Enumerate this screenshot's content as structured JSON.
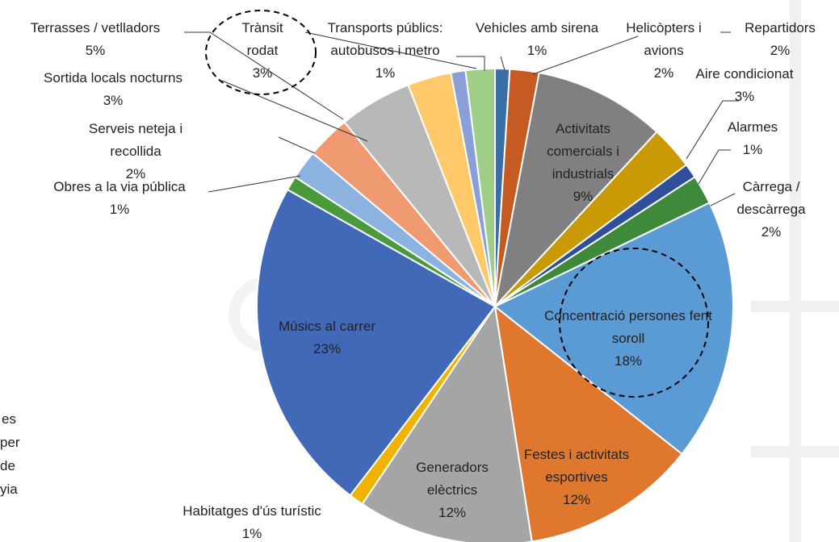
{
  "chart_data": {
    "type": "pie",
    "categories": [
      "Vehicles amb sirena",
      "Helicòpters i avions",
      "Activitats comercials i industrials",
      "Aire condicionat",
      "Alarmes",
      "Càrrega / descàrrega",
      "Concentració persones fent soroll",
      "Festes i activitats esportives",
      "Generadors elèctrics",
      "Habitatges d'ús turístic",
      "Músics al carrer",
      "Obres a la via pública",
      "Serveis neteja i recollida",
      "Sortida locals nocturns",
      "Terrasses / vetlladors",
      "Trànsit rodat",
      "Transports públics: autobusos i metro",
      "Repartidors"
    ],
    "values": [
      1,
      2,
      9,
      3,
      1,
      2,
      18,
      12,
      12,
      1,
      23,
      1,
      2,
      3,
      5,
      3,
      1,
      2
    ],
    "value_labels": [
      "1%",
      "2%",
      "9%",
      "3%",
      "1%",
      "2%",
      "18%",
      "12%",
      "12%",
      "1%",
      "23%",
      "1%",
      "2%",
      "3%",
      "5%",
      "3%",
      "1%",
      "2%"
    ],
    "colors": [
      "#3a6ea5",
      "#c55a22",
      "#808080",
      "#c99a06",
      "#2f4f9a",
      "#3f8a3a",
      "#5b9bd5",
      "#e0772e",
      "#a5a5a5",
      "#f0b400",
      "#4169b8",
      "#4a9a3c",
      "#8cb3e0",
      "#f09a72",
      "#b8b8b8",
      "#ffc96a",
      "#8a9ed8",
      "#9fcf86"
    ],
    "side_note": [
      "es",
      "per",
      "de",
      "yia"
    ]
  }
}
